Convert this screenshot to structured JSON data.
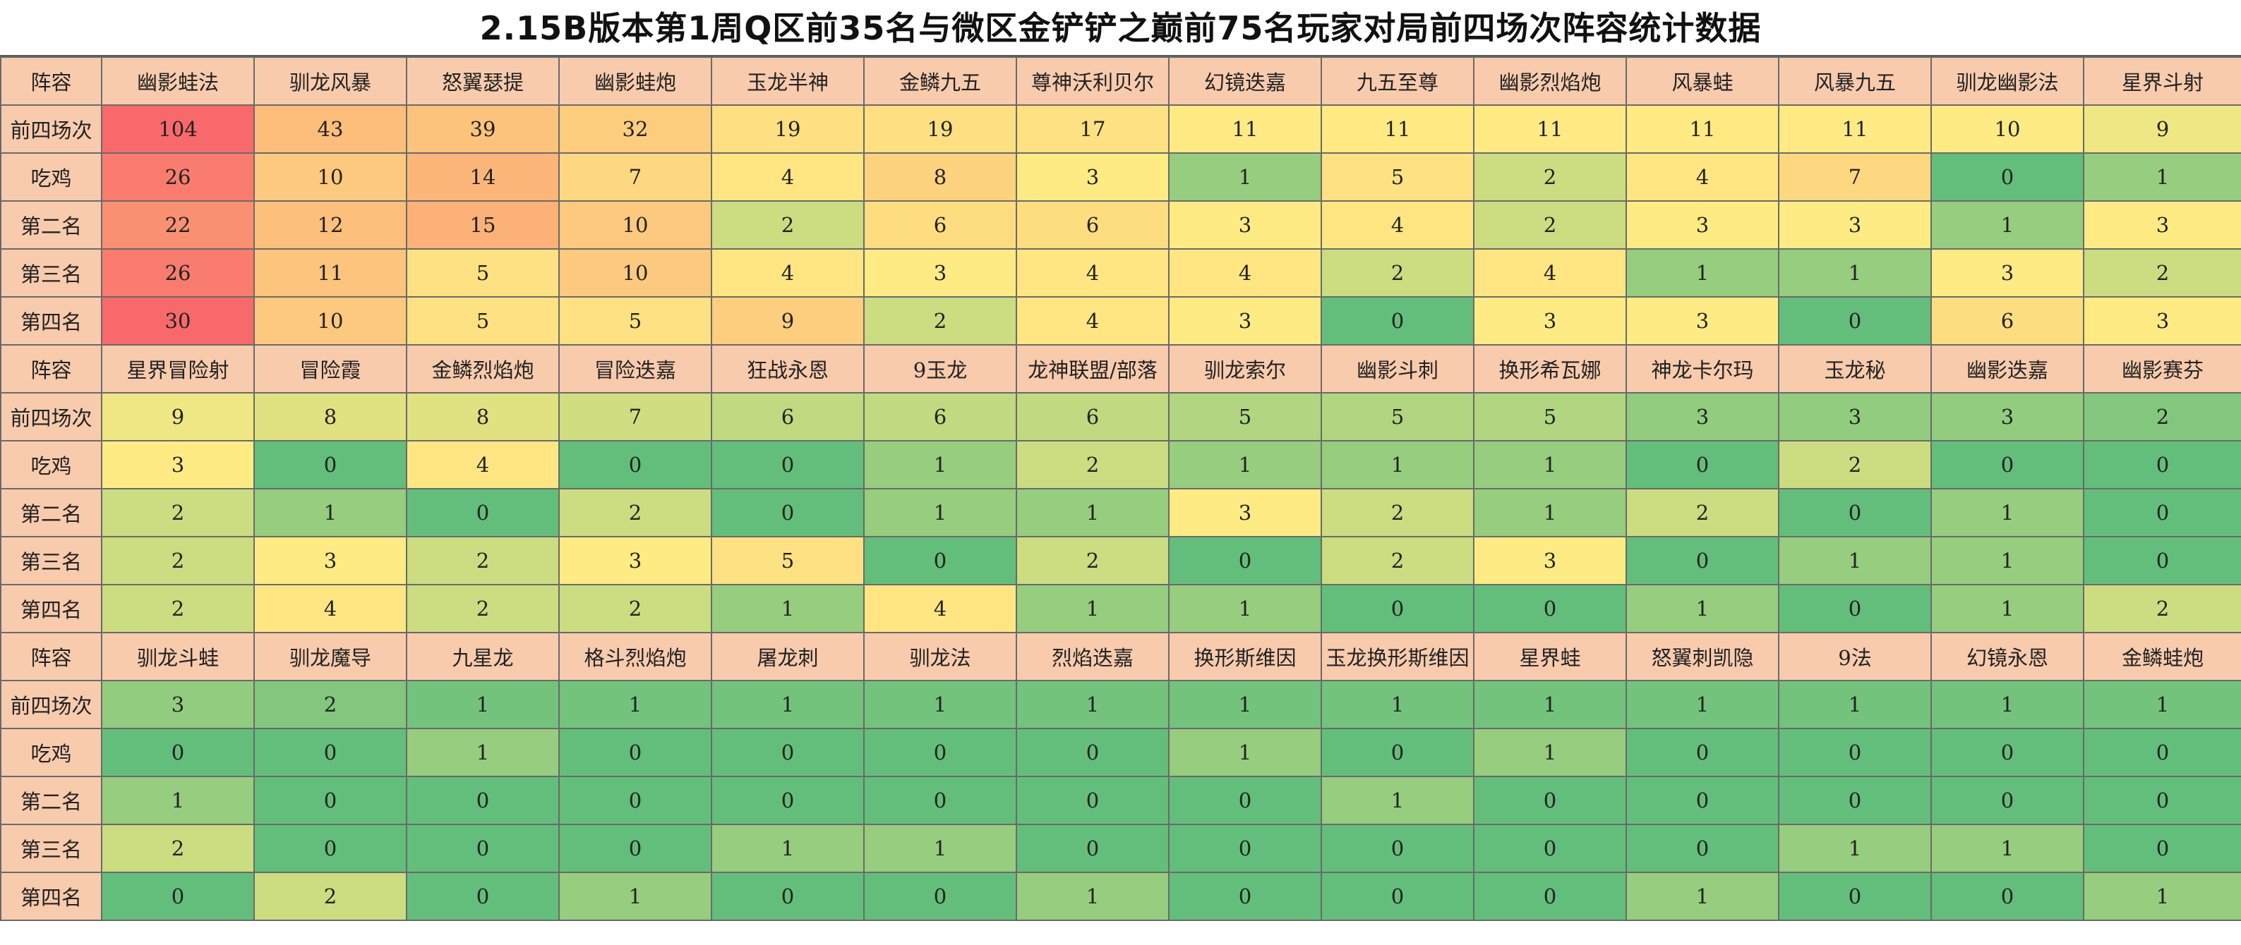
{
  "title": "2.15B版本第1周Q区前35名与微区金铲铲之巅前75名玩家对局前四场次阵容统计数据",
  "colors": {
    "header_bg": "#f8cbad",
    "grid_line": "#6a6a6a",
    "scale_max": "#f8696b",
    "scale_mid": "#ffeb84",
    "scale_min": "#63be7b"
  },
  "row_labels": {
    "header": "阵容",
    "rows": [
      "前四场次",
      "吃鸡",
      "第二名",
      "第三名",
      "第四名"
    ]
  },
  "blocks": [
    {
      "headers": [
        "幽影蛙法",
        "驯龙风暴",
        "怒翼瑟提",
        "幽影蛙炮",
        "玉龙半神",
        "金鳞九五",
        "尊神沃利贝尔",
        "幻镜迭嘉",
        "九五至尊",
        "幽影烈焰炮",
        "风暴蛙",
        "风暴九五",
        "驯龙幽影法",
        "星界斗射"
      ],
      "rows": [
        [
          "104",
          "43",
          "39",
          "32",
          "19",
          "19",
          "17",
          "11",
          "11",
          "11",
          "11",
          "11",
          "10",
          "9"
        ],
        [
          "26",
          "10",
          "14",
          "7",
          "4",
          "8",
          "3",
          "1",
          "5",
          "2",
          "4",
          "7",
          "0",
          "1"
        ],
        [
          "22",
          "12",
          "15",
          "10",
          "2",
          "6",
          "6",
          "3",
          "4",
          "2",
          "3",
          "3",
          "1",
          "3"
        ],
        [
          "26",
          "11",
          "5",
          "10",
          "4",
          "3",
          "4",
          "4",
          "2",
          "4",
          "1",
          "1",
          "3",
          "2"
        ],
        [
          "30",
          "10",
          "5",
          "5",
          "9",
          "2",
          "4",
          "3",
          "0",
          "3",
          "3",
          "0",
          "6",
          "3"
        ]
      ]
    },
    {
      "headers": [
        "星界冒险射",
        "冒险霞",
        "金鳞烈焰炮",
        "冒险迭嘉",
        "狂战永恩",
        "9玉龙",
        "龙神联盟/部落",
        "驯龙索尔",
        "幽影斗刺",
        "换形希瓦娜",
        "神龙卡尔玛",
        "玉龙秘",
        "幽影迭嘉",
        "幽影赛芬"
      ],
      "rows": [
        [
          "9",
          "8",
          "8",
          "7",
          "6",
          "6",
          "6",
          "5",
          "5",
          "5",
          "3",
          "3",
          "3",
          "2"
        ],
        [
          "3",
          "0",
          "4",
          "0",
          "0",
          "1",
          "2",
          "1",
          "1",
          "1",
          "0",
          "2",
          "0",
          "0"
        ],
        [
          "2",
          "1",
          "0",
          "2",
          "0",
          "1",
          "1",
          "3",
          "2",
          "1",
          "2",
          "0",
          "1",
          "0"
        ],
        [
          "2",
          "3",
          "2",
          "3",
          "5",
          "0",
          "2",
          "0",
          "2",
          "3",
          "0",
          "1",
          "1",
          "0"
        ],
        [
          "2",
          "4",
          "2",
          "2",
          "1",
          "4",
          "1",
          "1",
          "0",
          "0",
          "1",
          "0",
          "1",
          "2"
        ]
      ]
    },
    {
      "headers": [
        "驯龙斗蛙",
        "驯龙魔导",
        "九星龙",
        "格斗烈焰炮",
        "屠龙刺",
        "驯龙法",
        "烈焰迭嘉",
        "换形斯维因",
        "玉龙换形斯维因",
        "星界蛙",
        "怒翼刺凯隐",
        "9法",
        "幻镜永恩",
        "金鳞蛙炮"
      ],
      "rows": [
        [
          "3",
          "2",
          "1",
          "1",
          "1",
          "1",
          "1",
          "1",
          "1",
          "1",
          "1",
          "1",
          "1",
          "1"
        ],
        [
          "0",
          "0",
          "1",
          "0",
          "0",
          "0",
          "0",
          "1",
          "0",
          "1",
          "0",
          "0",
          "0",
          "0"
        ],
        [
          "1",
          "0",
          "0",
          "0",
          "0",
          "0",
          "0",
          "0",
          "1",
          "0",
          "0",
          "0",
          "0",
          "0"
        ],
        [
          "2",
          "0",
          "0",
          "0",
          "1",
          "1",
          "0",
          "0",
          "0",
          "0",
          "0",
          "1",
          "1",
          "0"
        ],
        [
          "0",
          "2",
          "0",
          "1",
          "0",
          "0",
          "1",
          "0",
          "0",
          "0",
          "1",
          "0",
          "0",
          "1"
        ]
      ]
    }
  ]
}
